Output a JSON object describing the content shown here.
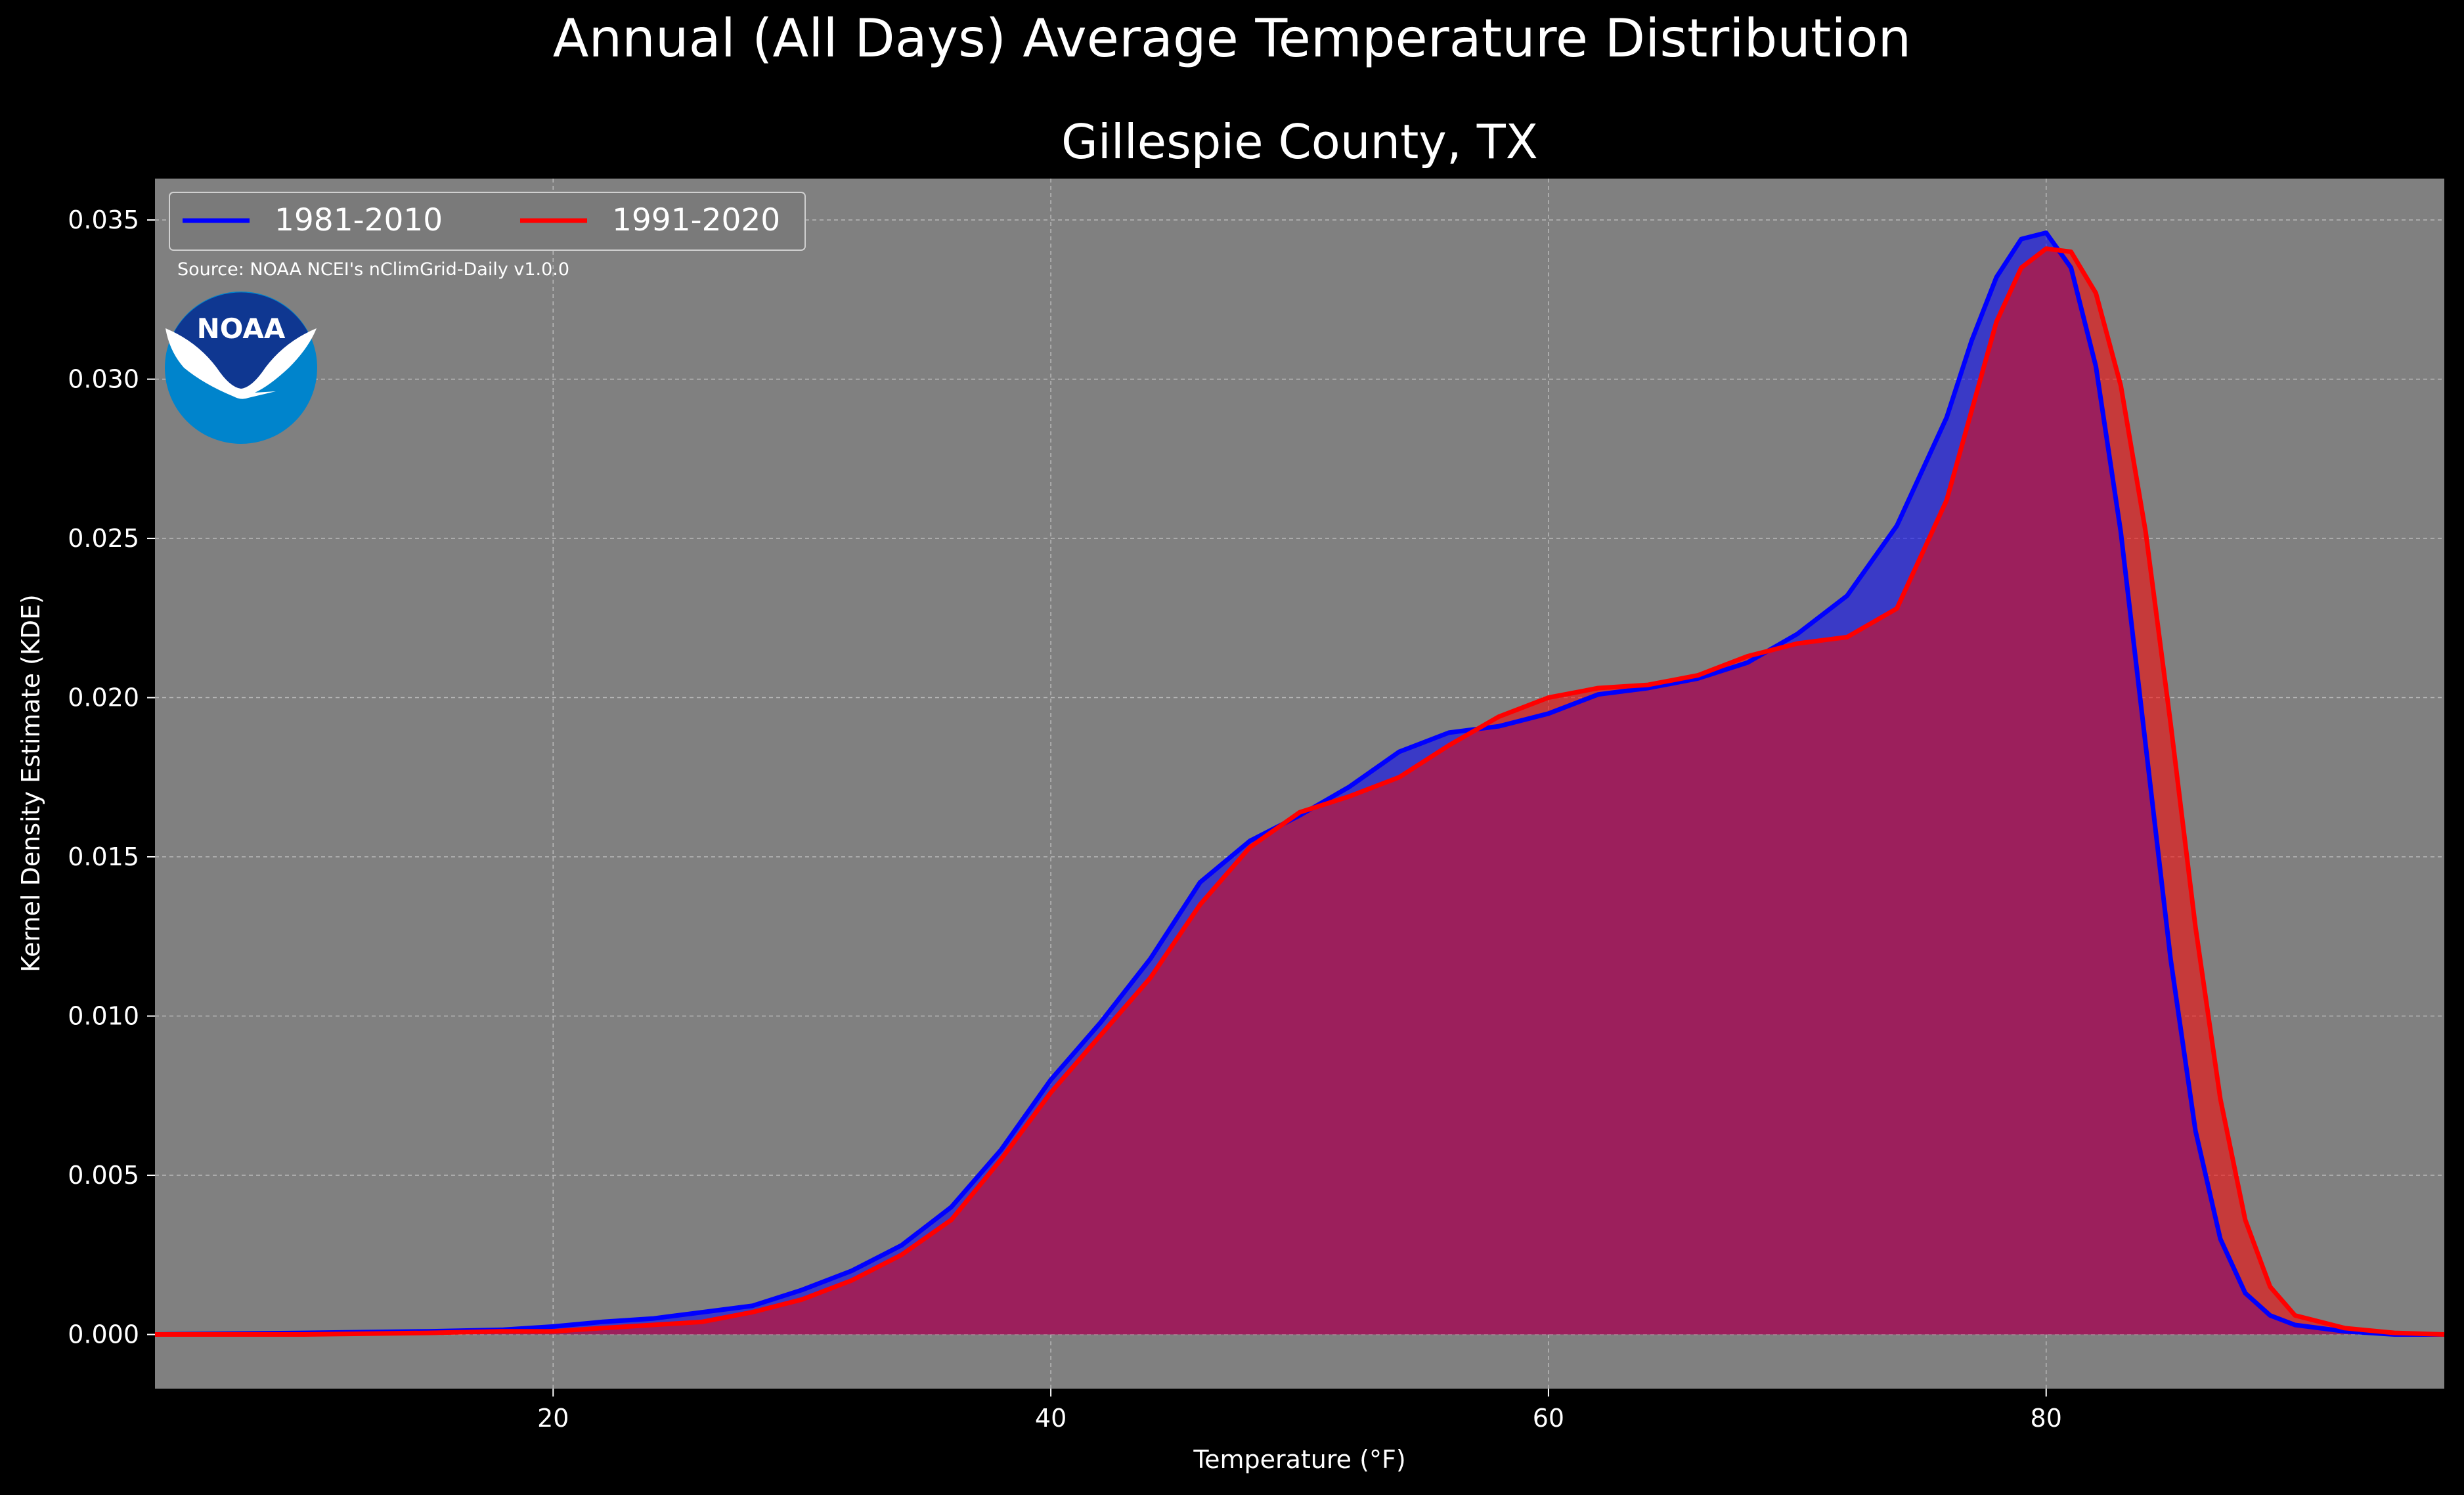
{
  "figure": {
    "suptitle": "Annual (All Days) Average Temperature Distribution",
    "source_text": "Source: NOAA NCEI's nClimGrid-Daily v1.0.0",
    "logo_text": "NOAA"
  },
  "colors": {
    "figure_background": "#000000",
    "axes_background": "#808080",
    "series_1981": "#0000ff",
    "series_1991": "#ff0000",
    "overlap_fill": "#9c1f5c",
    "logo_outer": "#0084cc",
    "logo_inner": "#0f3791"
  },
  "chart_data": {
    "type": "area",
    "title": "Gillespie County, TX",
    "xlabel": "Temperature (°F)",
    "ylabel": "Kernel Density Estimate (KDE)",
    "xlim": [
      4,
      96
    ],
    "ylim": [
      -0.0017,
      0.0363
    ],
    "xticks": [
      20,
      40,
      60,
      80
    ],
    "xtick_labels": [
      "20",
      "40",
      "60",
      "80"
    ],
    "yticks": [
      0.0,
      0.005,
      0.01,
      0.015,
      0.02,
      0.025,
      0.03,
      0.035
    ],
    "ytick_labels": [
      "0.000",
      "0.005",
      "0.010",
      "0.015",
      "0.020",
      "0.025",
      "0.030",
      "0.035"
    ],
    "grid": true,
    "legend": {
      "position": "top-left",
      "ncol": 2
    },
    "x": [
      4,
      10,
      15,
      18,
      20,
      22,
      24,
      26,
      28,
      30,
      32,
      34,
      36,
      38,
      40,
      42,
      44,
      46,
      48,
      50,
      52,
      54,
      56,
      58,
      60,
      62,
      64,
      66,
      68,
      70,
      72,
      74,
      76,
      77,
      78,
      79,
      80,
      81,
      82,
      83,
      84,
      85,
      86,
      87,
      88,
      89,
      90,
      92,
      94,
      96
    ],
    "series": [
      {
        "name": "1981-2010",
        "values": [
          0.0,
          5e-05,
          0.0001,
          0.00015,
          0.00025,
          0.0004,
          0.0005,
          0.0007,
          0.0009,
          0.0014,
          0.002,
          0.0028,
          0.004,
          0.0058,
          0.008,
          0.0098,
          0.0118,
          0.0142,
          0.0155,
          0.0163,
          0.0172,
          0.0183,
          0.0189,
          0.0191,
          0.0195,
          0.0201,
          0.0203,
          0.0206,
          0.0211,
          0.022,
          0.0232,
          0.0254,
          0.0288,
          0.0312,
          0.0332,
          0.0344,
          0.0346,
          0.0335,
          0.0304,
          0.0252,
          0.0185,
          0.0118,
          0.0064,
          0.003,
          0.0013,
          0.0006,
          0.0003,
          0.0001,
          0.0,
          0.0
        ]
      },
      {
        "name": "1991-2020",
        "values": [
          0.0,
          0.0,
          5e-05,
          0.0001,
          0.0001,
          0.0002,
          0.0003,
          0.0004,
          0.0007,
          0.0011,
          0.0017,
          0.0025,
          0.0036,
          0.0055,
          0.0076,
          0.0094,
          0.0112,
          0.0135,
          0.0153,
          0.0164,
          0.0169,
          0.0175,
          0.0185,
          0.0194,
          0.02,
          0.0203,
          0.0204,
          0.0207,
          0.0213,
          0.0217,
          0.0219,
          0.0228,
          0.0262,
          0.029,
          0.0318,
          0.0335,
          0.0341,
          0.034,
          0.0327,
          0.0298,
          0.0252,
          0.0192,
          0.0128,
          0.0074,
          0.0036,
          0.0015,
          0.0006,
          0.0002,
          5e-05,
          0.0
        ]
      }
    ]
  }
}
